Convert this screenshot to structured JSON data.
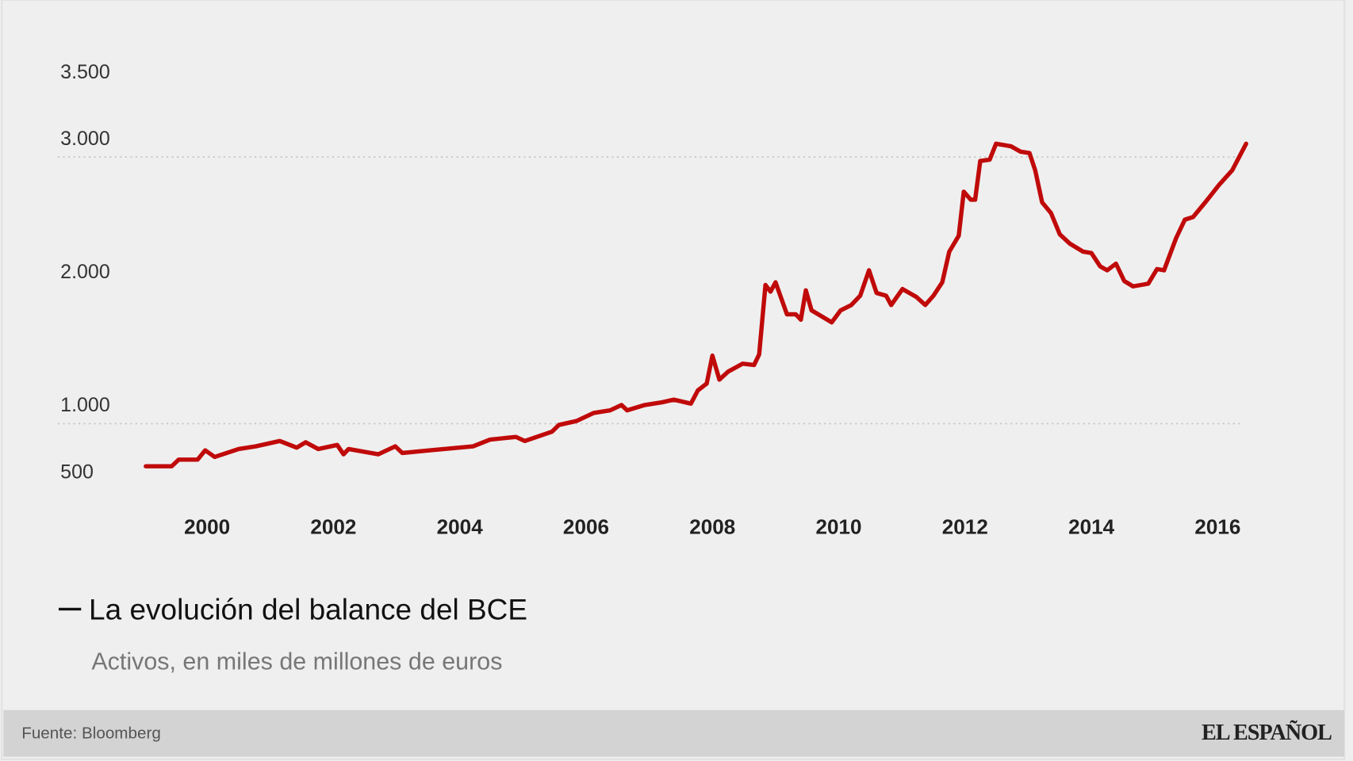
{
  "chart_data": {
    "type": "line",
    "title": "La evolución del balance del BCE",
    "subtitle": "Activos, en miles de millones de euros",
    "xlabel": "",
    "ylabel": "",
    "x_ticks": [
      "2000",
      "2002",
      "2004",
      "2006",
      "2008",
      "2010",
      "2012",
      "2014",
      "2016"
    ],
    "y_ticks": [
      {
        "value": 3500,
        "label": "3.500"
      },
      {
        "value": 3000,
        "label": "3.000"
      },
      {
        "value": 2000,
        "label": "2.000"
      },
      {
        "value": 1000,
        "label": "1.000"
      },
      {
        "value": 500,
        "label": "500"
      }
    ],
    "grid_lines": [
      1000,
      3000
    ],
    "grid": "dotted horizontal",
    "line_color": "#c00a0a",
    "series": [
      {
        "name": "La evolución del balance del BCE",
        "x": [
          1999.03,
          1999.44,
          1999.55,
          1999.85,
          1999.97,
          2000.12,
          2000.5,
          2000.77,
          2001.15,
          2001.42,
          2001.56,
          2001.76,
          2002.06,
          2002.16,
          2002.24,
          2002.71,
          2002.98,
          2003.09,
          2003.53,
          2004.21,
          2004.48,
          2004.89,
          2005.03,
          2005.46,
          2005.57,
          2005.85,
          2006.12,
          2006.38,
          2006.56,
          2006.65,
          2006.93,
          2007.2,
          2007.39,
          2007.66,
          2007.77,
          2007.91,
          2008.0,
          2008.11,
          2008.25,
          2008.48,
          2008.66,
          2008.74,
          2008.84,
          2008.92,
          2009.0,
          2009.18,
          2009.32,
          2009.4,
          2009.48,
          2009.57,
          2009.89,
          2010.03,
          2010.2,
          2010.34,
          2010.48,
          2010.6,
          2010.75,
          2010.83,
          2011.01,
          2011.23,
          2011.37,
          2011.5,
          2011.64,
          2011.75,
          2011.9,
          2011.98,
          2012.09,
          2012.16,
          2012.24,
          2012.39,
          2012.49,
          2012.73,
          2012.88,
          2013.02,
          2013.11,
          2013.22,
          2013.36,
          2013.5,
          2013.66,
          2013.87,
          2014.0,
          2014.14,
          2014.25,
          2014.39,
          2014.52,
          2014.66,
          2014.9,
          2015.04,
          2015.15,
          2015.34,
          2015.48,
          2015.61,
          2015.82,
          2016.02,
          2016.23,
          2016.45
        ],
        "values": [
          680,
          680,
          730,
          730,
          800,
          750,
          810,
          830,
          870,
          820,
          860,
          810,
          840,
          770,
          810,
          770,
          830,
          780,
          800,
          830,
          880,
          900,
          870,
          940,
          990,
          1020,
          1080,
          1100,
          1140,
          1100,
          1140,
          1160,
          1180,
          1150,
          1250,
          1300,
          1510,
          1330,
          1390,
          1450,
          1440,
          1520,
          2040,
          1990,
          2060,
          1820,
          1820,
          1780,
          2000,
          1850,
          1760,
          1850,
          1890,
          1960,
          2150,
          1980,
          1960,
          1890,
          2010,
          1950,
          1890,
          1960,
          2060,
          2290,
          2410,
          2740,
          2680,
          2680,
          2970,
          2980,
          3100,
          3080,
          3040,
          3030,
          2900,
          2660,
          2580,
          2420,
          2350,
          2290,
          2280,
          2180,
          2150,
          2200,
          2070,
          2030,
          2050,
          2160,
          2150,
          2390,
          2530,
          2550,
          2670,
          2790,
          2900,
          3100
        ]
      }
    ]
  },
  "footer": {
    "source": "Fuente: Bloomberg",
    "logo": "EL ESPAÑOL"
  }
}
